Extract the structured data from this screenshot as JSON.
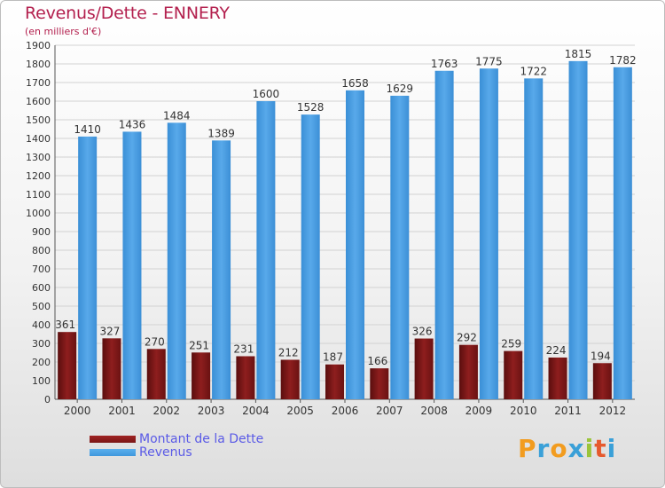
{
  "title": "Revenus/Dette - ENNERY",
  "subtitle": "(en milliers d'€)",
  "colors": {
    "debt": "#7a1616",
    "revenue": "#3f97dc",
    "title": "#b3204e",
    "legend_text": "#5a5ae6"
  },
  "logo": {
    "letters": [
      "P",
      "r",
      "o",
      "x",
      "i",
      "t",
      "i"
    ],
    "colors": [
      "#f29c1f",
      "#3aa0d8",
      "#f29c1f",
      "#3aa0d8",
      "#9bc43b",
      "#e65a2e",
      "#3aa0d8"
    ]
  },
  "legend": [
    {
      "label": "Montant de la Dette",
      "color": "#7a1616"
    },
    {
      "label": "Revenus",
      "color": "#3f97dc"
    }
  ],
  "chart_data": {
    "type": "bar",
    "title": "Revenus/Dette - ENNERY",
    "subtitle": "(en milliers d'€)",
    "categories": [
      "2000",
      "2001",
      "2002",
      "2003",
      "2004",
      "2005",
      "2006",
      "2007",
      "2008",
      "2009",
      "2010",
      "2011",
      "2012"
    ],
    "series": [
      {
        "name": "Montant de la Dette",
        "values": [
          361,
          327,
          270,
          251,
          231,
          212,
          187,
          166,
          326,
          292,
          259,
          224,
          194
        ]
      },
      {
        "name": "Revenus",
        "values": [
          1410,
          1436,
          1484,
          1389,
          1600,
          1528,
          1658,
          1629,
          1763,
          1775,
          1722,
          1815,
          1782
        ]
      }
    ],
    "ylim": [
      0,
      1900
    ],
    "yticks": [
      0,
      100,
      200,
      300,
      400,
      500,
      600,
      700,
      800,
      900,
      1000,
      1100,
      1200,
      1300,
      1400,
      1500,
      1600,
      1700,
      1800,
      1900
    ],
    "grid": true,
    "legend_position": "bottom-left"
  }
}
